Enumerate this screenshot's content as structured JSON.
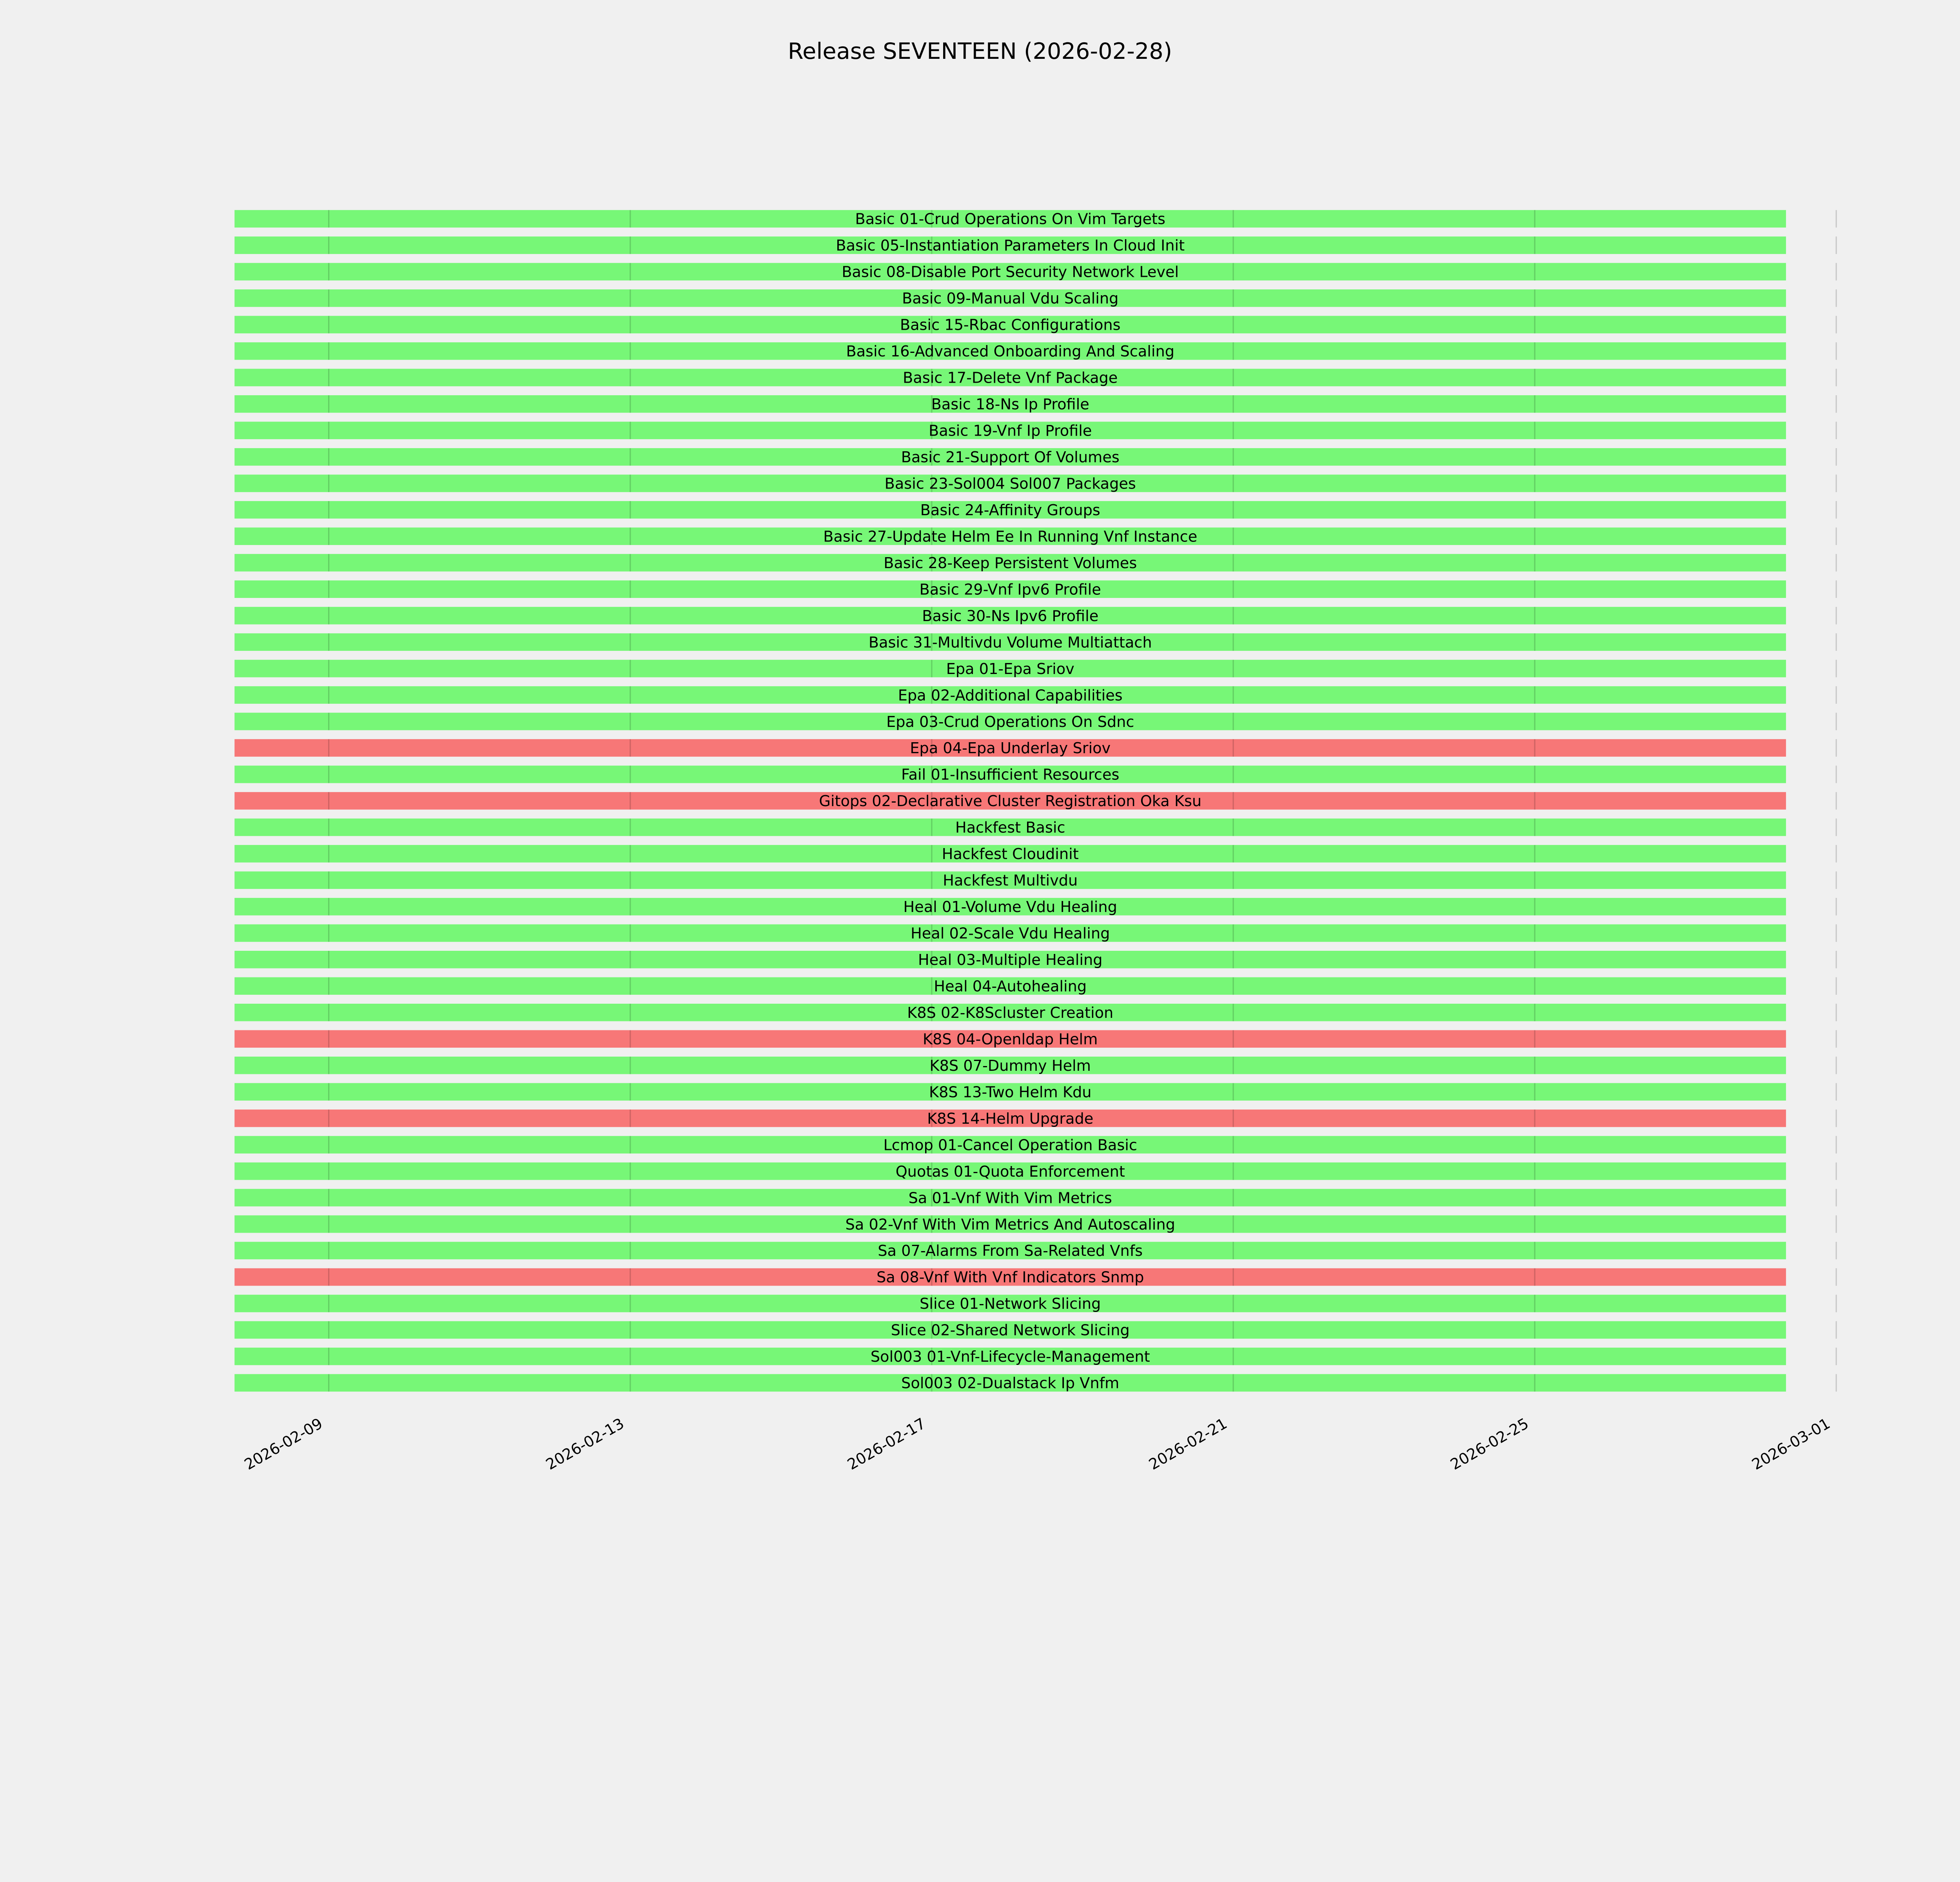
{
  "chart_data": {
    "type": "gantt-bar",
    "title": "Release SEVENTEEN (2026-02-28)",
    "xlabel": "",
    "ylabel": "",
    "x_ticks": [
      "2026-02-09",
      "2026-02-13",
      "2026-02-17",
      "2026-02-21",
      "2026-02-25",
      "2026-03-01"
    ],
    "xlim": [
      "2026-02-06T12:00",
      "2026-03-01T00:00"
    ],
    "grid": "vertical",
    "colors": {
      "pass": "#77f777",
      "fail": "#f77777"
    },
    "bars": [
      {
        "label": "Basic 01-Crud Operations On Vim Targets",
        "start": "2026-02-07T18:00",
        "end": "2026-02-28T08:00",
        "status": "pass"
      },
      {
        "label": "Basic 05-Instantiation Parameters In Cloud Init",
        "start": "2026-02-07T18:00",
        "end": "2026-02-28T08:00",
        "status": "pass"
      },
      {
        "label": "Basic 08-Disable Port Security Network Level",
        "start": "2026-02-07T18:00",
        "end": "2026-02-28T08:00",
        "status": "pass"
      },
      {
        "label": "Basic 09-Manual Vdu Scaling",
        "start": "2026-02-07T18:00",
        "end": "2026-02-28T08:00",
        "status": "pass"
      },
      {
        "label": "Basic 15-Rbac Configurations",
        "start": "2026-02-07T18:00",
        "end": "2026-02-28T08:00",
        "status": "pass"
      },
      {
        "label": "Basic 16-Advanced Onboarding And Scaling",
        "start": "2026-02-07T18:00",
        "end": "2026-02-28T08:00",
        "status": "pass"
      },
      {
        "label": "Basic 17-Delete Vnf Package",
        "start": "2026-02-07T18:00",
        "end": "2026-02-28T08:00",
        "status": "pass"
      },
      {
        "label": "Basic 18-Ns Ip Profile",
        "start": "2026-02-07T18:00",
        "end": "2026-02-28T08:00",
        "status": "pass"
      },
      {
        "label": "Basic 19-Vnf Ip Profile",
        "start": "2026-02-07T18:00",
        "end": "2026-02-28T08:00",
        "status": "pass"
      },
      {
        "label": "Basic 21-Support Of Volumes",
        "start": "2026-02-07T18:00",
        "end": "2026-02-28T08:00",
        "status": "pass"
      },
      {
        "label": "Basic 23-Sol004 Sol007 Packages",
        "start": "2026-02-07T18:00",
        "end": "2026-02-28T08:00",
        "status": "pass"
      },
      {
        "label": "Basic 24-Affinity Groups",
        "start": "2026-02-07T18:00",
        "end": "2026-02-28T08:00",
        "status": "pass"
      },
      {
        "label": "Basic 27-Update Helm Ee In Running Vnf Instance",
        "start": "2026-02-07T18:00",
        "end": "2026-02-28T08:00",
        "status": "pass"
      },
      {
        "label": "Basic 28-Keep Persistent Volumes",
        "start": "2026-02-07T18:00",
        "end": "2026-02-28T08:00",
        "status": "pass"
      },
      {
        "label": "Basic 29-Vnf Ipv6 Profile",
        "start": "2026-02-07T18:00",
        "end": "2026-02-28T08:00",
        "status": "pass"
      },
      {
        "label": "Basic 30-Ns Ipv6 Profile",
        "start": "2026-02-07T18:00",
        "end": "2026-02-28T08:00",
        "status": "pass"
      },
      {
        "label": "Basic 31-Multivdu Volume Multiattach",
        "start": "2026-02-07T18:00",
        "end": "2026-02-28T08:00",
        "status": "pass"
      },
      {
        "label": "Epa 01-Epa Sriov",
        "start": "2026-02-07T18:00",
        "end": "2026-02-28T08:00",
        "status": "pass"
      },
      {
        "label": "Epa 02-Additional Capabilities",
        "start": "2026-02-07T18:00",
        "end": "2026-02-28T08:00",
        "status": "pass"
      },
      {
        "label": "Epa 03-Crud Operations On Sdnc",
        "start": "2026-02-07T18:00",
        "end": "2026-02-28T08:00",
        "status": "pass"
      },
      {
        "label": "Epa 04-Epa Underlay Sriov",
        "start": "2026-02-07T18:00",
        "end": "2026-02-28T08:00",
        "status": "fail"
      },
      {
        "label": "Fail 01-Insufficient Resources",
        "start": "2026-02-07T18:00",
        "end": "2026-02-28T08:00",
        "status": "pass"
      },
      {
        "label": "Gitops 02-Declarative Cluster Registration Oka Ksu",
        "start": "2026-02-07T18:00",
        "end": "2026-02-28T08:00",
        "status": "fail"
      },
      {
        "label": "Hackfest Basic",
        "start": "2026-02-07T18:00",
        "end": "2026-02-28T08:00",
        "status": "pass"
      },
      {
        "label": "Hackfest Cloudinit",
        "start": "2026-02-07T18:00",
        "end": "2026-02-28T08:00",
        "status": "pass"
      },
      {
        "label": "Hackfest Multivdu",
        "start": "2026-02-07T18:00",
        "end": "2026-02-28T08:00",
        "status": "pass"
      },
      {
        "label": "Heal 01-Volume Vdu Healing",
        "start": "2026-02-07T18:00",
        "end": "2026-02-28T08:00",
        "status": "pass"
      },
      {
        "label": "Heal 02-Scale Vdu Healing",
        "start": "2026-02-07T18:00",
        "end": "2026-02-28T08:00",
        "status": "pass"
      },
      {
        "label": "Heal 03-Multiple Healing",
        "start": "2026-02-07T18:00",
        "end": "2026-02-28T08:00",
        "status": "pass"
      },
      {
        "label": "Heal 04-Autohealing",
        "start": "2026-02-07T18:00",
        "end": "2026-02-28T08:00",
        "status": "pass"
      },
      {
        "label": "K8S 02-K8Scluster Creation",
        "start": "2026-02-07T18:00",
        "end": "2026-02-28T08:00",
        "status": "pass"
      },
      {
        "label": "K8S 04-Openldap Helm",
        "start": "2026-02-07T18:00",
        "end": "2026-02-28T08:00",
        "status": "fail"
      },
      {
        "label": "K8S 07-Dummy Helm",
        "start": "2026-02-07T18:00",
        "end": "2026-02-28T08:00",
        "status": "pass"
      },
      {
        "label": "K8S 13-Two Helm Kdu",
        "start": "2026-02-07T18:00",
        "end": "2026-02-28T08:00",
        "status": "pass"
      },
      {
        "label": "K8S 14-Helm Upgrade",
        "start": "2026-02-07T18:00",
        "end": "2026-02-28T08:00",
        "status": "fail"
      },
      {
        "label": "Lcmop 01-Cancel Operation Basic",
        "start": "2026-02-07T18:00",
        "end": "2026-02-28T08:00",
        "status": "pass"
      },
      {
        "label": "Quotas 01-Quota Enforcement",
        "start": "2026-02-07T18:00",
        "end": "2026-02-28T08:00",
        "status": "pass"
      },
      {
        "label": "Sa 01-Vnf With Vim Metrics",
        "start": "2026-02-07T18:00",
        "end": "2026-02-28T08:00",
        "status": "pass"
      },
      {
        "label": "Sa 02-Vnf With Vim Metrics And Autoscaling",
        "start": "2026-02-07T18:00",
        "end": "2026-02-28T08:00",
        "status": "pass"
      },
      {
        "label": "Sa 07-Alarms From Sa-Related Vnfs",
        "start": "2026-02-07T18:00",
        "end": "2026-02-28T08:00",
        "status": "pass"
      },
      {
        "label": "Sa 08-Vnf With Vnf Indicators Snmp",
        "start": "2026-02-07T18:00",
        "end": "2026-02-28T08:00",
        "status": "fail"
      },
      {
        "label": "Slice 01-Network Slicing",
        "start": "2026-02-07T18:00",
        "end": "2026-02-28T08:00",
        "status": "pass"
      },
      {
        "label": "Slice 02-Shared Network Slicing",
        "start": "2026-02-07T18:00",
        "end": "2026-02-28T08:00",
        "status": "pass"
      },
      {
        "label": "Sol003 01-Vnf-Lifecycle-Management",
        "start": "2026-02-07T18:00",
        "end": "2026-02-28T08:00",
        "status": "pass"
      },
      {
        "label": "Sol003 02-Dualstack Ip Vnfm",
        "start": "2026-02-07T18:00",
        "end": "2026-02-28T08:00",
        "status": "pass"
      }
    ]
  }
}
